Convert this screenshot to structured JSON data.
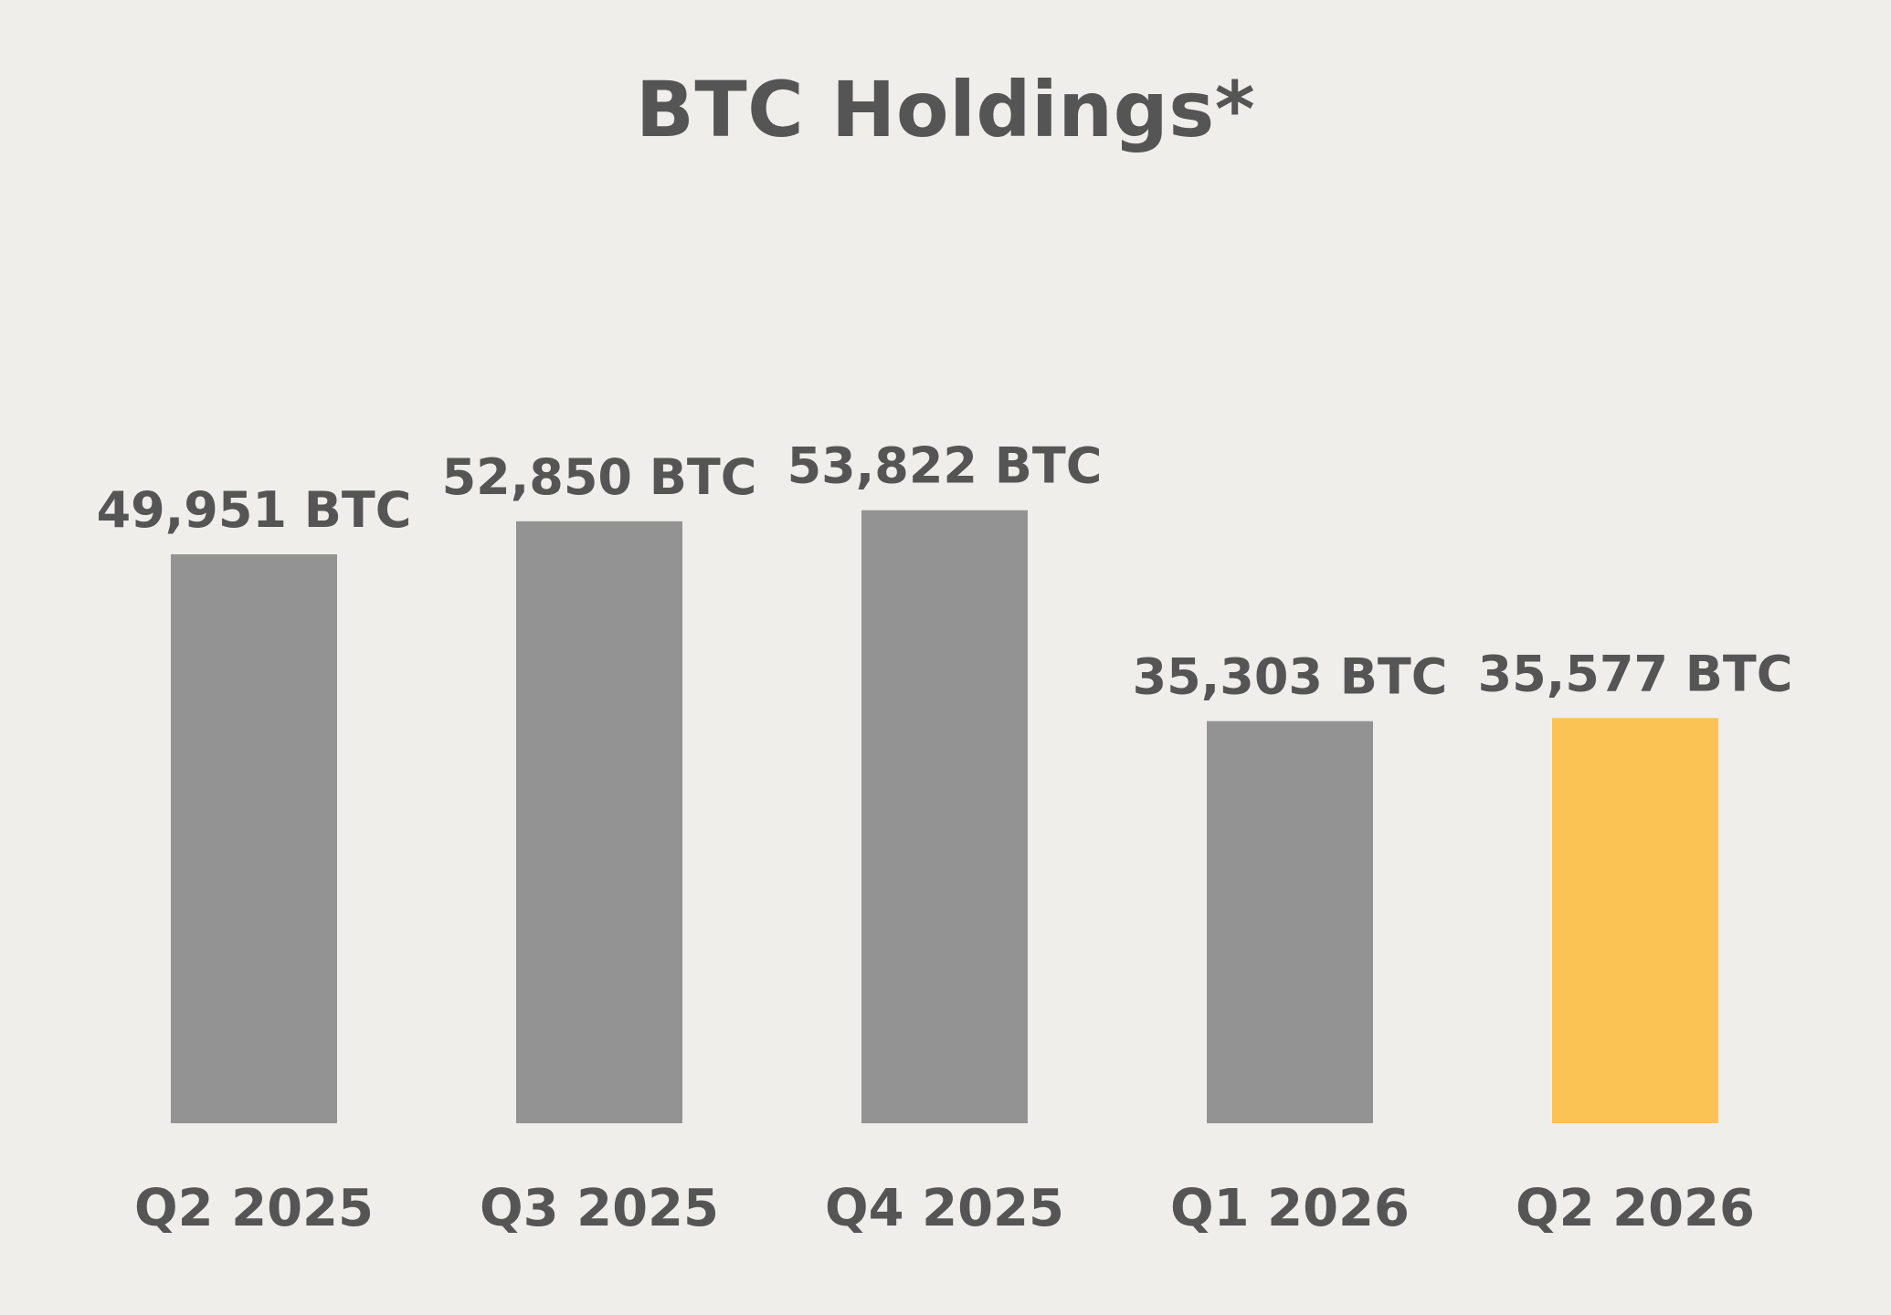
{
  "chart_data": {
    "type": "bar",
    "title": "BTC Holdings*",
    "xlabel": "",
    "ylabel": "",
    "unit": "BTC",
    "categories": [
      "Q2 2025",
      "Q3 2025",
      "Q4 2025",
      "Q1 2026",
      "Q2 2026"
    ],
    "values": [
      49951,
      52850,
      53822,
      35303,
      35577
    ],
    "data_labels": [
      "49,951 BTC",
      "52,850 BTC",
      "53,822 BTC",
      "35,303 BTC",
      "35,577 BTC"
    ],
    "colors": [
      "#939393",
      "#939393",
      "#939393",
      "#939393",
      "#fbc354"
    ],
    "grid": false,
    "legend": "none"
  }
}
